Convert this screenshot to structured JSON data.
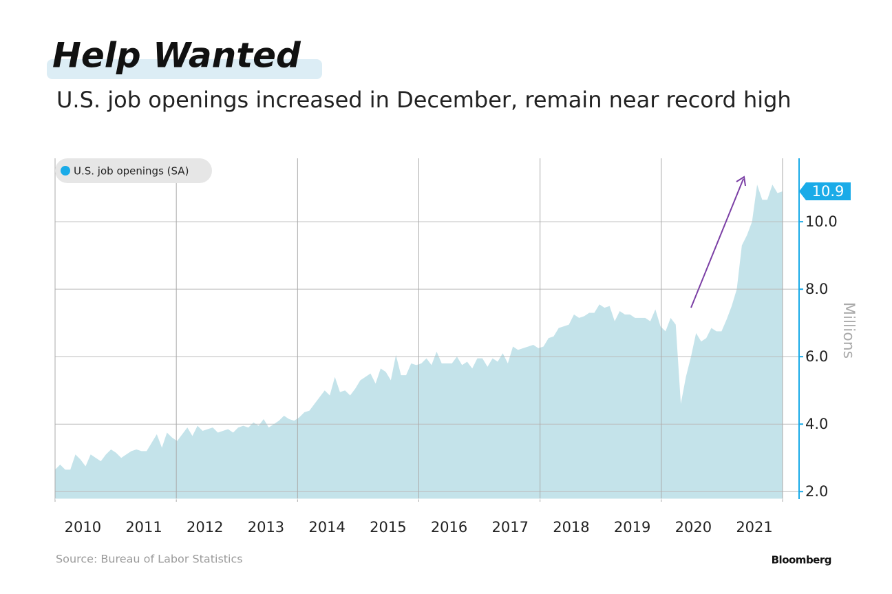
{
  "chart_data": {
    "type": "area",
    "title": "Help Wanted",
    "subtitle": "U.S. job openings increased in December, remain near record high",
    "y_label": "Millions",
    "source": "Source: Bureau of Labor Statistics",
    "brand": "Bloomberg",
    "categories": [
      null,
      null,
      null,
      null,
      null,
      null,
      "2010",
      null,
      null,
      null,
      null,
      null,
      null,
      null,
      null,
      null,
      null,
      null,
      "2011",
      null,
      null,
      null,
      null,
      null,
      null,
      null,
      null,
      null,
      null,
      null,
      "2012",
      null,
      null,
      null,
      null,
      null,
      null,
      null,
      null,
      null,
      null,
      null,
      "2013",
      null,
      null,
      null,
      null,
      null,
      null,
      null,
      null,
      null,
      null,
      null,
      "2014",
      null,
      null,
      null,
      null,
      null,
      null,
      null,
      null,
      null,
      null,
      null,
      "2015",
      null,
      null,
      null,
      null,
      null,
      null,
      null,
      null,
      null,
      null,
      null,
      "2016",
      null,
      null,
      null,
      null,
      null,
      null,
      null,
      null,
      null,
      null,
      null,
      "2017",
      null,
      null,
      null,
      null,
      null,
      null,
      null,
      null,
      null,
      null,
      null,
      "2018",
      null,
      null,
      null,
      null,
      null,
      null,
      null,
      null,
      null,
      null,
      null,
      "2019",
      null,
      null,
      null,
      null,
      null,
      null,
      null,
      null,
      null,
      null,
      null,
      "2020",
      null,
      null,
      null,
      null,
      null,
      null,
      null,
      null,
      null,
      null,
      null,
      "2021",
      null,
      null,
      null,
      null,
      null
    ],
    "series": [
      {
        "name": "U.S. job openings (SA)",
        "color": "#c4e3ea",
        "legend_color": "#1aabe8",
        "values": [
          2.65,
          2.8,
          2.65,
          2.65,
          3.1,
          2.95,
          2.75,
          3.1,
          3.0,
          2.9,
          3.1,
          3.25,
          3.15,
          3.0,
          3.1,
          3.2,
          3.25,
          3.2,
          3.2,
          3.45,
          3.7,
          3.3,
          3.75,
          3.6,
          3.5,
          3.7,
          3.9,
          3.65,
          3.95,
          3.8,
          3.85,
          3.9,
          3.75,
          3.8,
          3.85,
          3.75,
          3.9,
          3.95,
          3.9,
          4.05,
          3.95,
          4.15,
          3.9,
          4.0,
          4.1,
          4.25,
          4.15,
          4.1,
          4.2,
          4.35,
          4.4,
          4.6,
          4.8,
          5.0,
          4.85,
          5.4,
          4.95,
          5.0,
          4.85,
          5.05,
          5.3,
          5.4,
          5.5,
          5.2,
          5.65,
          5.55,
          5.3,
          6.05,
          5.45,
          5.45,
          5.8,
          5.75,
          5.8,
          5.95,
          5.75,
          6.15,
          5.8,
          5.8,
          5.8,
          6.0,
          5.75,
          5.85,
          5.65,
          5.95,
          5.95,
          5.7,
          5.95,
          5.85,
          6.1,
          5.8,
          6.3,
          6.2,
          6.25,
          6.3,
          6.35,
          6.25,
          6.3,
          6.55,
          6.6,
          6.85,
          6.9,
          6.95,
          7.25,
          7.15,
          7.2,
          7.3,
          7.3,
          7.55,
          7.45,
          7.5,
          7.05,
          7.35,
          7.25,
          7.25,
          7.15,
          7.15,
          7.15,
          7.05,
          7.4,
          6.9,
          6.75,
          7.15,
          6.95,
          4.6,
          5.4,
          6.0,
          6.7,
          6.45,
          6.55,
          6.85,
          6.75,
          6.75,
          7.1,
          7.5,
          8.0,
          9.3,
          9.6,
          10.0,
          11.1,
          10.65,
          10.65,
          11.1,
          10.85,
          10.9
        ]
      }
    ],
    "ylim": [
      1.78,
      11.88
    ],
    "yticks": [
      {
        "value": 2,
        "label": "2.0"
      },
      {
        "value": 4,
        "label": "4.0"
      },
      {
        "value": 6,
        "label": "6.0"
      },
      {
        "value": 8,
        "label": "8.0"
      },
      {
        "value": 10,
        "label": "10.0"
      }
    ],
    "grid": true
  }
}
